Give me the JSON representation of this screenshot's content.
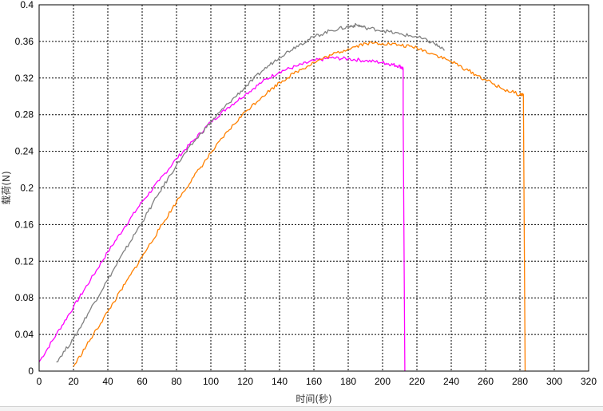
{
  "chart_data": {
    "type": "line",
    "title": "",
    "xlabel": "时间(秒)",
    "ylabel": "载荷(N)",
    "xlim": [
      0,
      320
    ],
    "ylim": [
      0,
      0.4
    ],
    "x_ticks": [
      "0",
      "20",
      "40",
      "60",
      "80",
      "100",
      "120",
      "140",
      "160",
      "180",
      "200",
      "220",
      "240",
      "260",
      "280",
      "300",
      "320"
    ],
    "y_ticks": [
      "0",
      "0.04",
      "0.08",
      "0.12",
      "0.16",
      "0.2",
      "0.24",
      "0.28",
      "0.32",
      "0.36",
      "0.4"
    ],
    "grid": true,
    "series": [
      {
        "color": "#ff00ff",
        "x": [
          0,
          10,
          20,
          30,
          40,
          50,
          60,
          70,
          80,
          90,
          100,
          110,
          120,
          130,
          140,
          150,
          160,
          170,
          180,
          190,
          200,
          205,
          210,
          212,
          212,
          213
        ],
        "y": [
          0.01,
          0.04,
          0.07,
          0.1,
          0.13,
          0.158,
          0.185,
          0.208,
          0.232,
          0.252,
          0.272,
          0.288,
          0.302,
          0.316,
          0.327,
          0.333,
          0.339,
          0.342,
          0.341,
          0.339,
          0.337,
          0.335,
          0.333,
          0.33,
          0.28,
          0.0
        ]
      },
      {
        "color": "#808080",
        "x": [
          10,
          20,
          30,
          40,
          50,
          60,
          70,
          80,
          90,
          100,
          110,
          120,
          130,
          140,
          150,
          160,
          170,
          180,
          185,
          190,
          200,
          210,
          220,
          230,
          236
        ],
        "y": [
          0.01,
          0.035,
          0.068,
          0.1,
          0.132,
          0.163,
          0.195,
          0.225,
          0.25,
          0.272,
          0.292,
          0.31,
          0.328,
          0.343,
          0.355,
          0.365,
          0.372,
          0.376,
          0.378,
          0.375,
          0.372,
          0.368,
          0.365,
          0.358,
          0.35
        ]
      },
      {
        "color": "#ff8000",
        "x": [
          20,
          30,
          40,
          50,
          60,
          70,
          80,
          90,
          100,
          110,
          120,
          130,
          140,
          150,
          160,
          170,
          180,
          190,
          200,
          210,
          220,
          230,
          240,
          250,
          260,
          270,
          280,
          282,
          282.5,
          283
        ],
        "y": [
          0.005,
          0.035,
          0.065,
          0.095,
          0.125,
          0.155,
          0.185,
          0.212,
          0.238,
          0.262,
          0.283,
          0.3,
          0.315,
          0.327,
          0.337,
          0.345,
          0.352,
          0.358,
          0.358,
          0.356,
          0.353,
          0.346,
          0.338,
          0.328,
          0.318,
          0.308,
          0.302,
          0.302,
          0.15,
          0.0
        ]
      }
    ]
  }
}
